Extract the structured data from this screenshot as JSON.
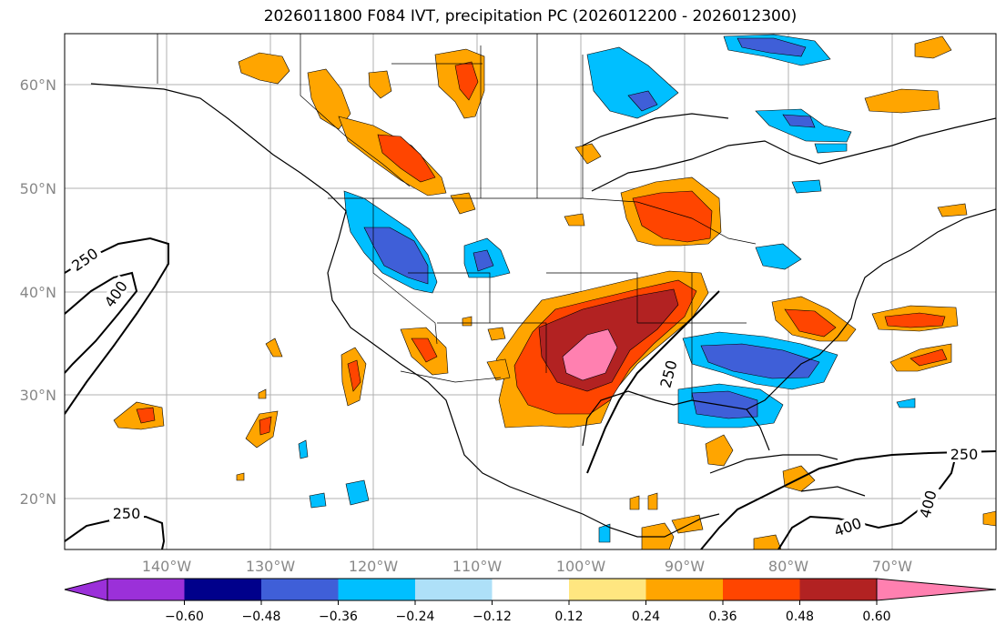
{
  "title": "2026011800 F084 IVT, precipitation PC (2026012200 - 2026012300)",
  "lat_labels": [
    "60°N",
    "50°N",
    "40°N",
    "30°N",
    "20°N"
  ],
  "lon_labels": [
    "140°W",
    "130°W",
    "120°W",
    "110°W",
    "100°W",
    "90°W",
    "80°W",
    "70°W"
  ],
  "contour_labels": [
    "250",
    "400",
    "250",
    "250",
    "400",
    "400"
  ],
  "colorbar": {
    "ticks": [
      "−0.60",
      "−0.48",
      "−0.36",
      "−0.24",
      "−0.12",
      "0.12",
      "0.24",
      "0.36",
      "0.48",
      "0.60"
    ],
    "colors": [
      "#9b30d9",
      "#00008b",
      "#3f5fd8",
      "#00bfff",
      "#aee0f8",
      "#ffffff",
      "#ffe680",
      "#ffa500",
      "#ff4500",
      "#b22222",
      "#ff80b0"
    ]
  }
}
